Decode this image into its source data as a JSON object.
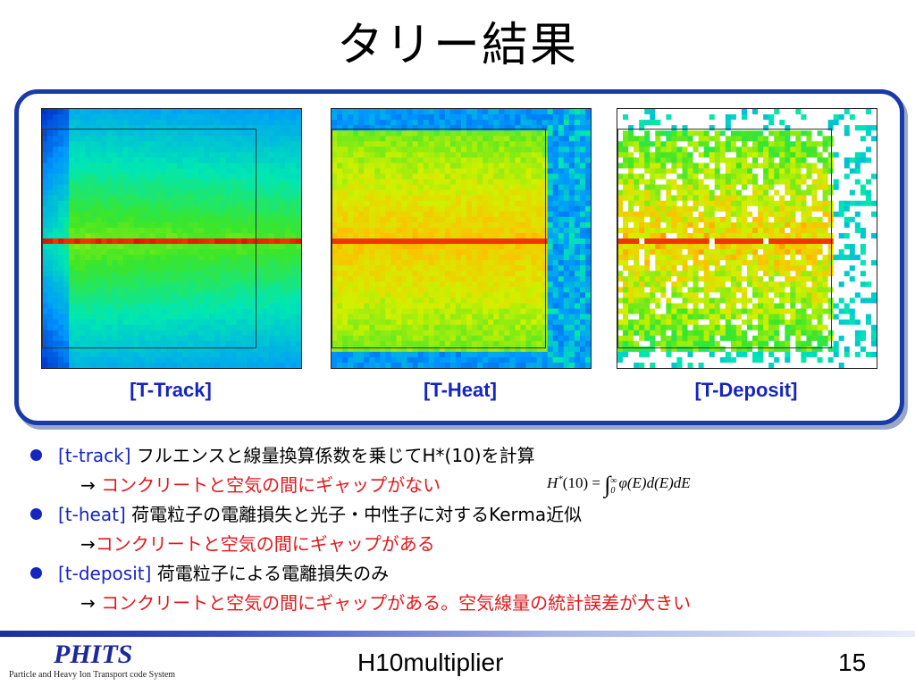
{
  "title": "タリー結果",
  "panels": [
    {
      "label": "[T-Track]",
      "palette": "track"
    },
    {
      "label": "[T-Heat]",
      "palette": "heat"
    },
    {
      "label": "[T-Deposit]",
      "palette": "deposit"
    }
  ],
  "colors": {
    "frame_border": "#1a3aa8",
    "label_blue": "#1525c0",
    "highlight_red": "#e0181c",
    "bullet_blue": "#1525c0"
  },
  "bullets": [
    {
      "keyword": "[t-track]",
      "text": " フルエンスと線量換算係数を乗じてH*(10)を計算",
      "sub_arrow": "→ ",
      "sub_text": "コンクリートと空気の間にギャップがない"
    },
    {
      "keyword": "[t-heat]",
      "text": " 荷電粒子の電離損失と光子・中性子に対するKerma近似",
      "sub_arrow": "→",
      "sub_text": "コンクリートと空気の間にギャップがある"
    },
    {
      "keyword": "[t-deposit]",
      "text": " 荷電粒子による電離損失のみ",
      "sub_arrow": "→ ",
      "sub_text": "コンクリートと空気の間にギャップがある。空気線量の統計誤差が大きい"
    }
  ],
  "equation": {
    "lhs": "H",
    "lhs_sup": "*",
    "lhs_arg": "(10) = ",
    "upper": "∞",
    "lower": "0",
    "rhs": "φ(E)d(E)dE"
  },
  "footer": {
    "logo": "PHITS",
    "logo_sub": "Particle and Heavy Ion Transport code System",
    "center": "H10multiplier",
    "page": "15"
  }
}
